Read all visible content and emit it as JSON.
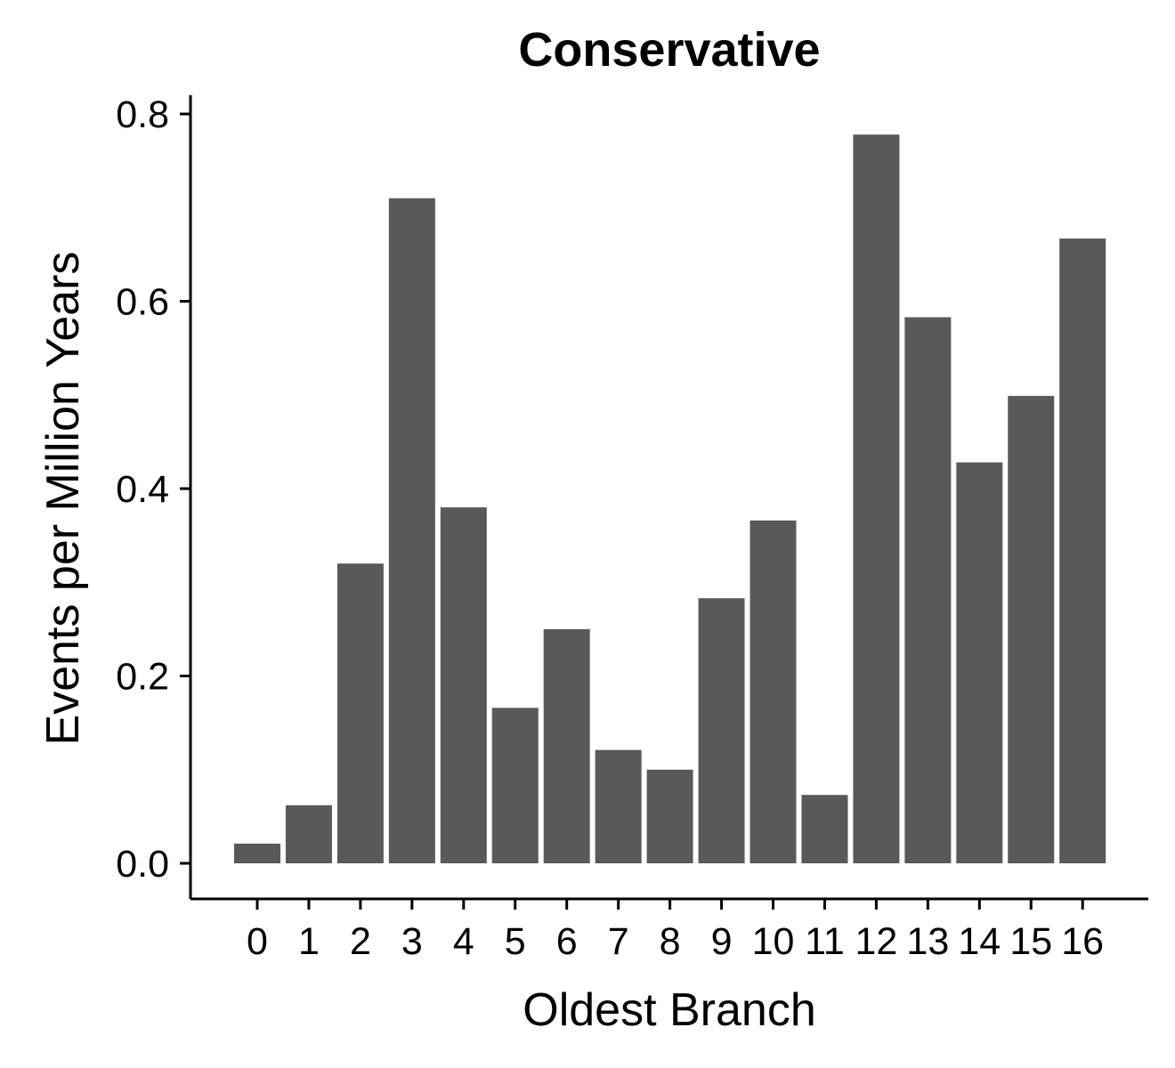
{
  "chart_data": {
    "type": "bar",
    "title": "Conservative",
    "xlabel": "Oldest Branch",
    "ylabel": "Events per Million Years",
    "categories": [
      "0",
      "1",
      "2",
      "3",
      "4",
      "5",
      "6",
      "7",
      "8",
      "9",
      "10",
      "11",
      "12",
      "13",
      "14",
      "15",
      "16"
    ],
    "values": [
      0.021,
      0.062,
      0.32,
      0.71,
      0.38,
      0.166,
      0.25,
      0.121,
      0.1,
      0.283,
      0.366,
      0.073,
      0.778,
      0.583,
      0.428,
      0.499,
      0.667
    ],
    "ylim": [
      -0.038,
      0.82
    ],
    "yticks": [
      0.0,
      0.2,
      0.4,
      0.6,
      0.8
    ],
    "ytick_labels": [
      "0.0",
      "0.2",
      "0.4",
      "0.6",
      "0.8"
    ],
    "bar_color": "#595959",
    "grid": false,
    "legend": "none"
  }
}
